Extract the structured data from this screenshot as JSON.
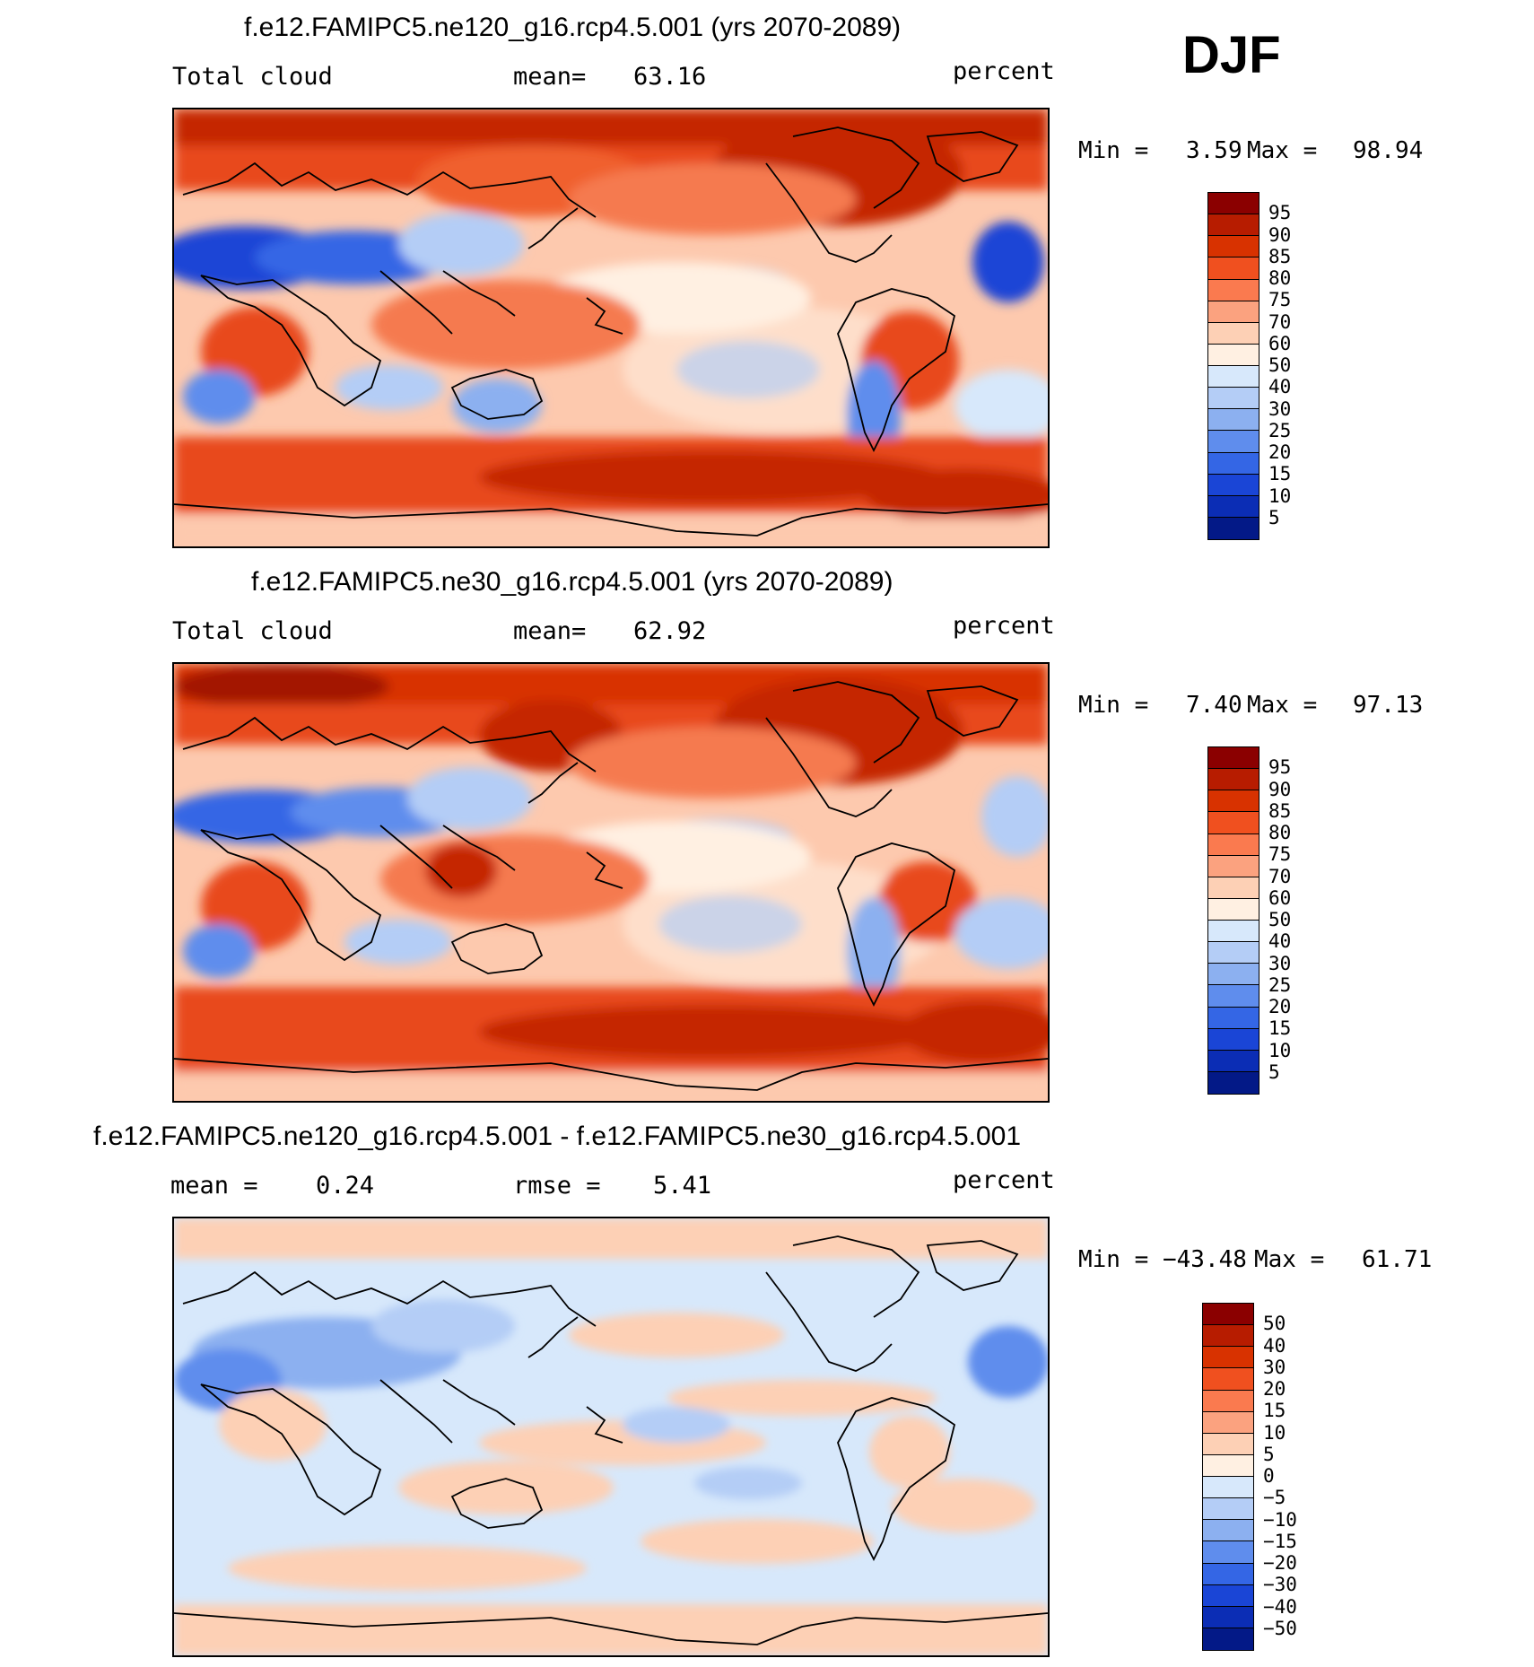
{
  "season": "DJF",
  "chart_data": [
    {
      "type": "heatmap",
      "title": "f.e12.FAMIPC5.ne120_g16.rcp4.5.001 (yrs 2070-2089)",
      "left_label": "Total cloud",
      "center_label": "mean=",
      "center_value": "63.16",
      "units": "percent",
      "min_label": "Min =",
      "min_value": "3.59",
      "max_label": "Max =",
      "max_value": "98.94",
      "levels": [
        "95",
        "90",
        "85",
        "80",
        "75",
        "70",
        "60",
        "50",
        "40",
        "30",
        "25",
        "20",
        "15",
        "10",
        "5"
      ],
      "colors": [
        "#8b0000",
        "#b71c00",
        "#d83200",
        "#f0501f",
        "#fa7a4f",
        "#fba27f",
        "#fdd0b5",
        "#fff0e2",
        "#d7e8fb",
        "#b4cdf6",
        "#8cb0f0",
        "#5f8ded",
        "#3466e5",
        "#1a45d6",
        "#0b2db5",
        "#031987"
      ]
    },
    {
      "type": "heatmap",
      "title": "f.e12.FAMIPC5.ne30_g16.rcp4.5.001 (yrs 2070-2089)",
      "left_label": "Total cloud",
      "center_label": "mean=",
      "center_value": "62.92",
      "units": "percent",
      "min_label": "Min =",
      "min_value": "7.40",
      "max_label": "Max =",
      "max_value": "97.13",
      "levels": [
        "95",
        "90",
        "85",
        "80",
        "75",
        "70",
        "60",
        "50",
        "40",
        "30",
        "25",
        "20",
        "15",
        "10",
        "5"
      ],
      "colors": [
        "#8b0000",
        "#b71c00",
        "#d83200",
        "#f0501f",
        "#fa7a4f",
        "#fba27f",
        "#fdd0b5",
        "#fff0e2",
        "#d7e8fb",
        "#b4cdf6",
        "#8cb0f0",
        "#5f8ded",
        "#3466e5",
        "#1a45d6",
        "#0b2db5",
        "#031987"
      ]
    },
    {
      "type": "heatmap",
      "title": "f.e12.FAMIPC5.ne120_g16.rcp4.5.001 - f.e12.FAMIPC5.ne30_g16.rcp4.5.001",
      "left_label": "mean =",
      "left_value": "0.24",
      "center_label": "rmse =",
      "center_value": "5.41",
      "units": "percent",
      "min_label": "Min =",
      "min_value": "−43.48",
      "max_label": "Max =",
      "max_value": "61.71",
      "levels": [
        "50",
        "40",
        "30",
        "20",
        "15",
        "10",
        "5",
        "0",
        "−5",
        "−10",
        "−15",
        "−20",
        "−30",
        "−40",
        "−50"
      ],
      "colors": [
        "#8b0000",
        "#b71c00",
        "#d83200",
        "#f0501f",
        "#fa7a4f",
        "#fba27f",
        "#fdd0b5",
        "#fff0e2",
        "#d7e8fb",
        "#b4cdf6",
        "#8cb0f0",
        "#5f8ded",
        "#3466e5",
        "#1a45d6",
        "#0b2db5",
        "#031987"
      ]
    }
  ]
}
